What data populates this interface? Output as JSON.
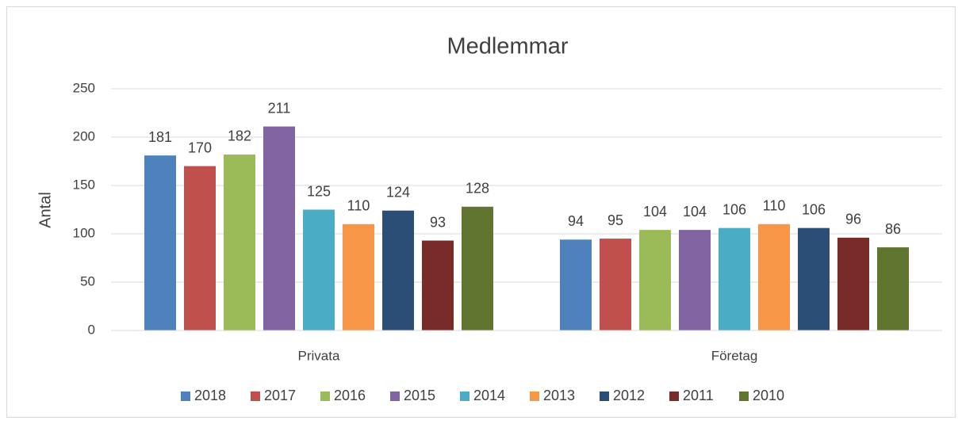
{
  "chart_data": {
    "type": "bar",
    "title": "Medlemmar",
    "y_label": "Antal",
    "categories": [
      "Privata",
      "Företag"
    ],
    "series": [
      {
        "name": "2018",
        "color": "#4f81bd",
        "values": [
          181,
          94
        ]
      },
      {
        "name": "2017",
        "color": "#c0504d",
        "values": [
          170,
          95
        ]
      },
      {
        "name": "2016",
        "color": "#9bbb59",
        "values": [
          182,
          104
        ]
      },
      {
        "name": "2015",
        "color": "#8064a2",
        "values": [
          211,
          104
        ]
      },
      {
        "name": "2014",
        "color": "#4bacc6",
        "values": [
          125,
          106
        ]
      },
      {
        "name": "2013",
        "color": "#f79646",
        "values": [
          110,
          110
        ]
      },
      {
        "name": "2012",
        "color": "#2c4d75",
        "values": [
          124,
          106
        ]
      },
      {
        "name": "2011",
        "color": "#772c2a",
        "values": [
          93,
          96
        ]
      },
      {
        "name": "2010",
        "color": "#5f7530",
        "values": [
          128,
          86
        ]
      }
    ],
    "ylim": [
      0,
      250
    ],
    "yticks": [
      0,
      50,
      100,
      150,
      200,
      250
    ],
    "grid": true,
    "legend": "bottom"
  }
}
